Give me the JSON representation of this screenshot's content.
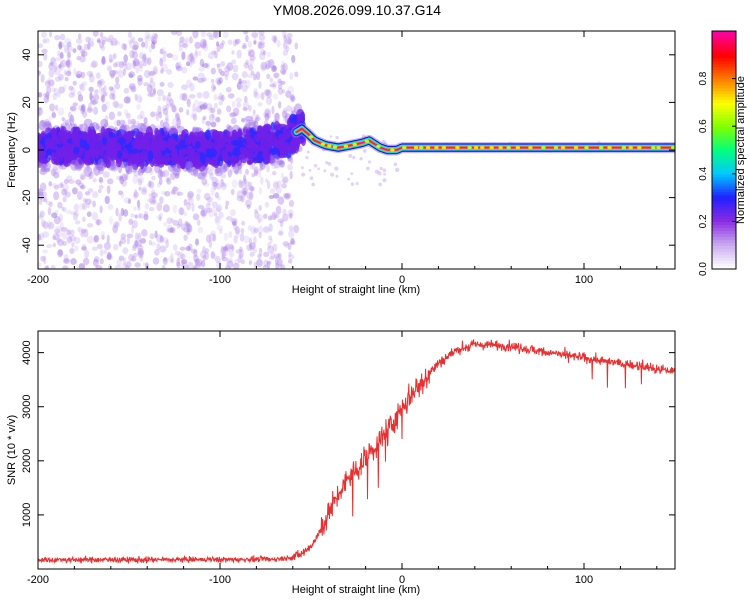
{
  "title": "YM08.2026.099.10.37.G14",
  "chart_data": [
    {
      "id": "spectrogram",
      "type": "heatmap",
      "title": "YM08.2026.099.10.37.G14",
      "xlabel": "Height of straight line (km)",
      "ylabel": "Frequency (Hz)",
      "xlim": [
        -200,
        150
      ],
      "ylim": [
        -50,
        50
      ],
      "xticks": [
        -200,
        -100,
        0,
        100
      ],
      "xtick_labels": [
        "-200",
        "-100",
        "0",
        "100"
      ],
      "yticks": [
        -40,
        -20,
        0,
        20,
        40
      ],
      "ytick_labels": [
        "-40",
        "-20",
        "0",
        "20",
        "40"
      ],
      "colorbar": {
        "label": "Normalized spectral amplitude",
        "range": [
          0,
          1
        ],
        "ticks": [
          0,
          0.2,
          0.4,
          0.6,
          0.8
        ],
        "tick_labels": [
          "0.0",
          "0.2",
          "0.4",
          "0.6",
          "0.8"
        ],
        "colors": [
          "#ffffff",
          "#c8a8f0",
          "#8a2be2",
          "#2020ff",
          "#00c8ff",
          "#00ff80",
          "#80ff00",
          "#ffff00",
          "#ff8000",
          "#ff0000",
          "#ff00a0"
        ]
      },
      "signal_track": {
        "x": [
          -200,
          -150,
          -100,
          -80,
          -65,
          -55,
          -52,
          -48,
          -42,
          -35,
          -28,
          -22,
          -18,
          -12,
          -8,
          -3,
          0,
          150
        ],
        "y": [
          2,
          1,
          0,
          2,
          4,
          9,
          7,
          4,
          2,
          1,
          2,
          3,
          4,
          1,
          0,
          0,
          1,
          1
        ]
      },
      "noise_region": {
        "x_range": [
          -200,
          -58
        ],
        "y_range": [
          -50,
          50
        ]
      }
    },
    {
      "id": "snr",
      "type": "line",
      "xlabel": "Height of straight line (km)",
      "ylabel": "SNR (10 * v/v)",
      "xlim": [
        -200,
        150
      ],
      "ylim": [
        0,
        4400
      ],
      "xticks": [
        -200,
        -100,
        0,
        100
      ],
      "xtick_labels": [
        "-200",
        "-100",
        "0",
        "100"
      ],
      "yticks": [
        1000,
        2000,
        3000,
        4000
      ],
      "ytick_labels": [
        "1000",
        "2000",
        "3000",
        "4000"
      ],
      "color": "#e83030",
      "trend": {
        "x": [
          -200,
          -120,
          -70,
          -60,
          -55,
          -50,
          -45,
          -40,
          -35,
          -30,
          -25,
          -20,
          -15,
          -10,
          -5,
          0,
          5,
          10,
          20,
          30,
          40,
          60,
          80,
          100,
          120,
          150
        ],
        "y": [
          170,
          170,
          180,
          220,
          280,
          420,
          700,
          1050,
          1350,
          1650,
          1850,
          2050,
          2250,
          2450,
          2700,
          2950,
          3200,
          3450,
          3800,
          4050,
          4150,
          4120,
          4000,
          3900,
          3800,
          3650
        ]
      }
    }
  ]
}
